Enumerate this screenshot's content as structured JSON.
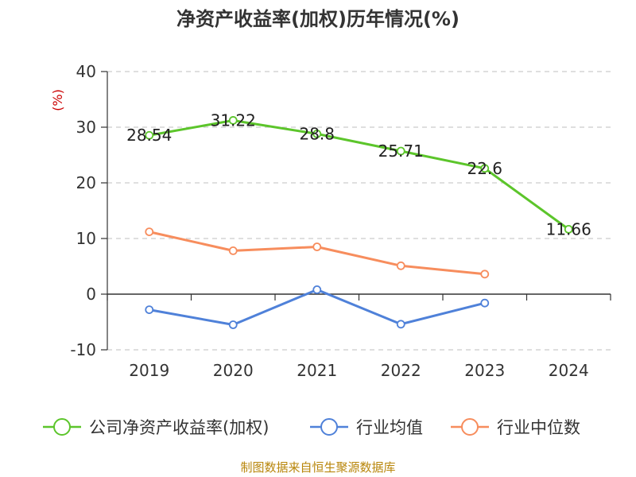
{
  "chart_data": {
    "type": "line",
    "title": "净资产收益率(加权)历年情况(%)",
    "ylabel": "(%)",
    "categories": [
      "2019",
      "2020",
      "2021",
      "2022",
      "2023",
      "2024"
    ],
    "ylim": [
      -10,
      40
    ],
    "yticks": [
      "40",
      "30",
      "20",
      "10",
      "0",
      "-10"
    ],
    "grid": true,
    "legend_position": "bottom",
    "series": [
      {
        "name": "公司净资产收益率(加权)",
        "color": "#5cc52b",
        "values": [
          28.54,
          31.22,
          28.8,
          25.71,
          22.6,
          11.66
        ],
        "labels": [
          "28.54",
          "31.22",
          "28.8",
          "25.71",
          "22.6",
          "11.66"
        ]
      },
      {
        "name": "行业均值",
        "color": "#4f81d9",
        "values": [
          -2.8,
          -5.5,
          0.8,
          -5.4,
          -1.6,
          null
        ]
      },
      {
        "name": "行业中位数",
        "color": "#f78d5d",
        "values": [
          11.2,
          7.8,
          8.5,
          5.1,
          3.6,
          null
        ]
      }
    ]
  },
  "source": "制图数据来自恒生聚源数据库"
}
